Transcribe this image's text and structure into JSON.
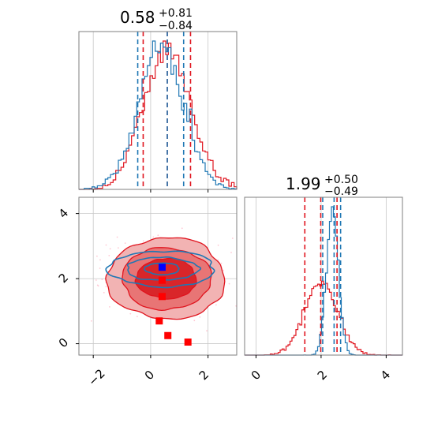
{
  "colors": {
    "red": "#e0141e",
    "blue": "#1f77b4",
    "grid": "#c8c8c8",
    "frame": "#7f7f7f",
    "contour_fill_outer": "#f2b3b3",
    "contour_fill_mid": "#e87575",
    "contour_fill_inner": "#d9262a",
    "points_red": "#ff0000",
    "points_blue": "#0000ff",
    "scatter_pink": "#ffc8d4"
  },
  "chart_data": [
    {
      "type": "histogram",
      "panel": "top-left",
      "title": {
        "main": "0.58",
        "sup": "+0.81",
        "sub": "−0.84"
      },
      "xlim": [
        -2.5,
        3.0
      ],
      "grid": true,
      "series": [
        {
          "name": "",
          "color": "red",
          "style": "step",
          "quantiles": [
            -0.26,
            0.58,
            1.39
          ]
        },
        {
          "name": "",
          "color": "blue",
          "style": "step",
          "quantiles": [
            -0.45,
            0.58,
            1.15
          ]
        }
      ]
    },
    {
      "type": "histogram",
      "panel": "bottom-right",
      "title": {
        "main": "1.99",
        "sup": "+0.50",
        "sub": "−0.49"
      },
      "xlim": [
        -0.35,
        4.5
      ],
      "xticks": [
        "0",
        "2",
        "4"
      ],
      "grid": true,
      "series": [
        {
          "name": "",
          "color": "red",
          "style": "step",
          "quantiles": [
            1.5,
            1.99,
            2.49
          ]
        },
        {
          "name": "",
          "color": "blue",
          "style": "step",
          "quantiles": [
            2.05,
            2.4,
            2.6
          ]
        }
      ]
    },
    {
      "type": "contour",
      "panel": "bottom-left",
      "xlim": [
        -2.5,
        3.0
      ],
      "ylim": [
        -0.35,
        4.5
      ],
      "xticks": [
        "−2",
        "0",
        "2"
      ],
      "yticks": [
        "0",
        "2",
        "4"
      ],
      "grid": true,
      "points_red": [
        [
          0.4,
          1.95
        ],
        [
          0.4,
          1.45
        ],
        [
          0.3,
          0.7
        ],
        [
          0.6,
          0.25
        ],
        [
          1.3,
          0.05
        ]
      ],
      "points_blue": [
        [
          0.4,
          2.35
        ]
      ]
    }
  ]
}
